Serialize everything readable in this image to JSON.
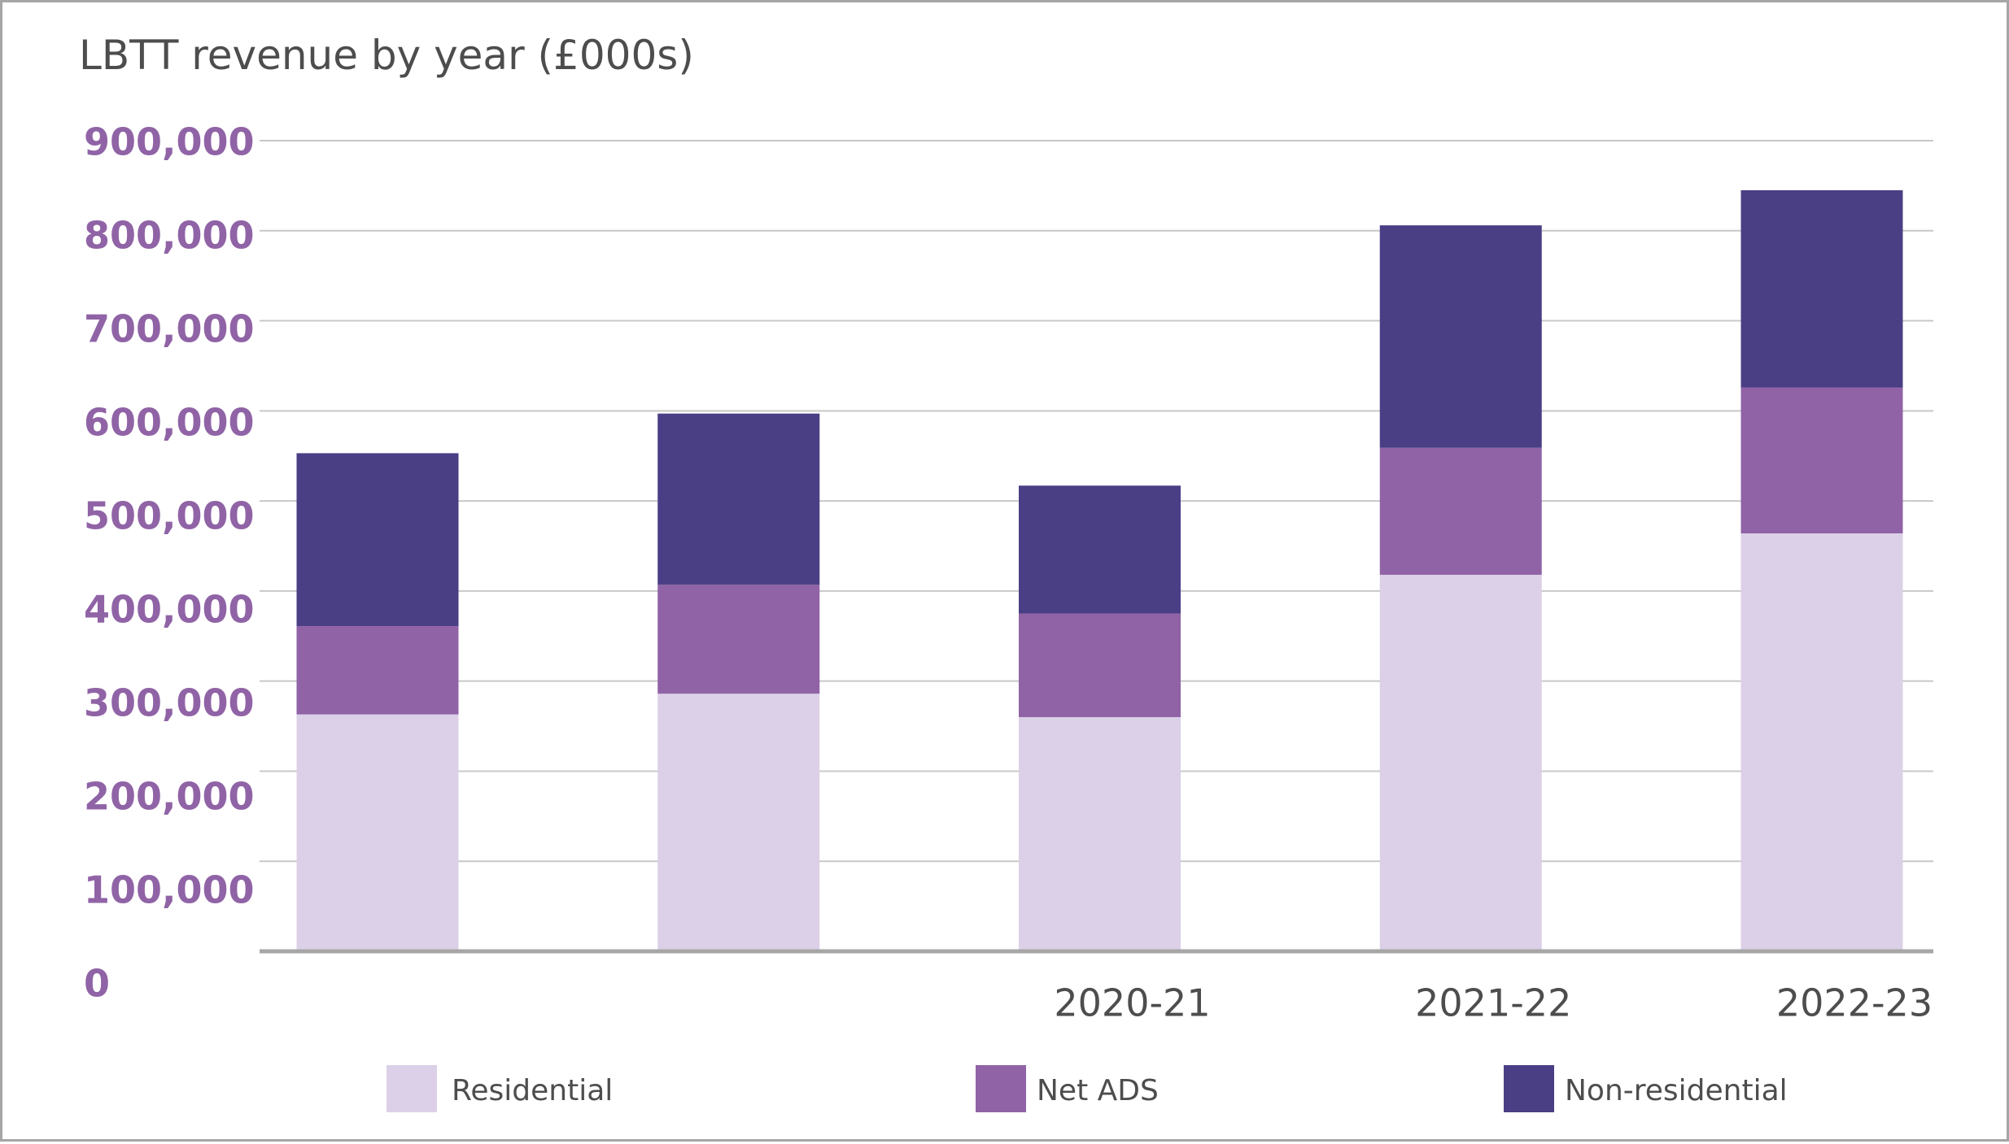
{
  "chart_data": {
    "type": "bar",
    "stacked": true,
    "title": "LBTT revenue by year (£000s)",
    "xlabel": "",
    "ylabel": "",
    "categories": [
      "",
      "",
      "2020-21",
      "2021-22",
      "2022-23"
    ],
    "ylim": [
      0,
      900000
    ],
    "yticks": [
      0,
      100000,
      200000,
      300000,
      400000,
      500000,
      600000,
      700000,
      800000,
      900000
    ],
    "ytick_labels": [
      "0",
      "100,000",
      "200,000",
      "300,000",
      "400,000",
      "500,000",
      "600,000",
      "700,000",
      "800,000",
      "900,000"
    ],
    "series": [
      {
        "name": "Residential",
        "color": "#dcd0e8",
        "values": [
          263000,
          286000,
          260000,
          418000,
          464000
        ]
      },
      {
        "name": "Net ADS",
        "color": "#9063a6",
        "values": [
          98000,
          121000,
          115000,
          141000,
          162000
        ]
      },
      {
        "name": "Non-residential",
        "color": "#4a3f85",
        "values": [
          192000,
          190000,
          142000,
          247000,
          219000
        ]
      }
    ],
    "grid": true,
    "legend_position": "bottom"
  }
}
